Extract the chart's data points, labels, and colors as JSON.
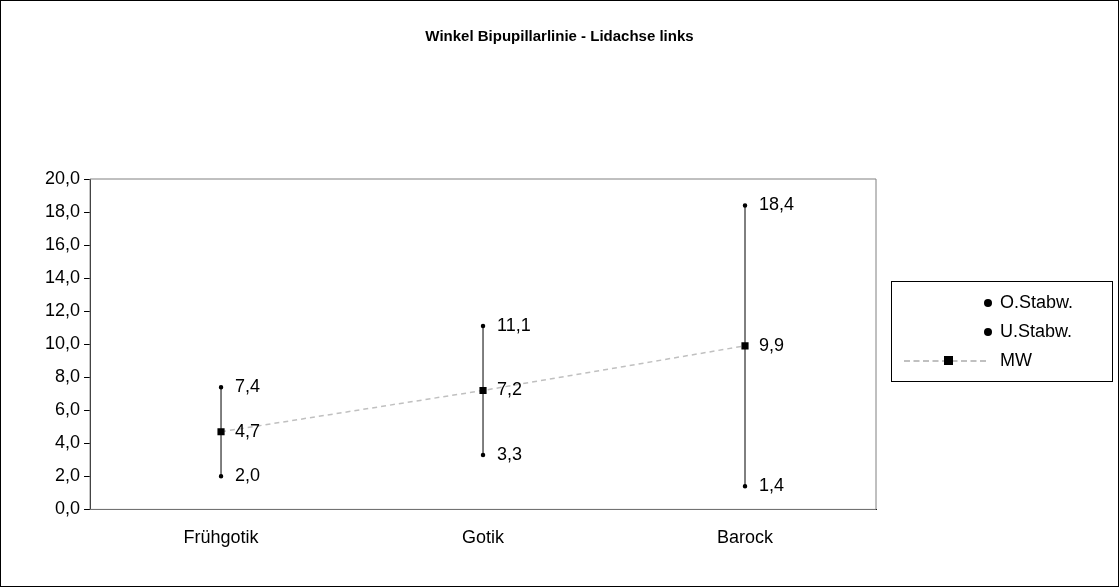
{
  "chart_data": {
    "type": "line",
    "title": "Winkel Bipupillarlinie - Lidachse links",
    "categories": [
      "Frühgotik",
      "Gotik",
      "Barock"
    ],
    "series": [
      {
        "name": "O.Stabw.",
        "type": "scatter",
        "color": "#000000",
        "values": [
          7.4,
          11.1,
          18.4
        ],
        "value_labels": [
          "7,4",
          "11,1",
          "18,4"
        ]
      },
      {
        "name": "U.Stabw.",
        "type": "scatter",
        "color": "#000000",
        "values": [
          2.0,
          3.3,
          1.4
        ],
        "value_labels": [
          "2,0",
          "3,3",
          "1,4"
        ]
      },
      {
        "name": "MW",
        "marker": "square",
        "line_style": "dashed",
        "color": "#c0c0c0",
        "values": [
          4.7,
          7.2,
          9.9
        ],
        "value_labels": [
          "4,7",
          "7,2",
          "9,9"
        ]
      }
    ],
    "ylim": [
      0,
      20
    ],
    "yticks": [
      {
        "value": 0,
        "label": "0,0"
      },
      {
        "value": 2,
        "label": "2,0"
      },
      {
        "value": 4,
        "label": "4,0"
      },
      {
        "value": 6,
        "label": "6,0"
      },
      {
        "value": 8,
        "label": "8,0"
      },
      {
        "value": 10,
        "label": "10,0"
      },
      {
        "value": 12,
        "label": "12,0"
      },
      {
        "value": 14,
        "label": "14,0"
      },
      {
        "value": 16,
        "label": "16,0"
      },
      {
        "value": 18,
        "label": "18,0"
      },
      {
        "value": 20,
        "label": "20,0"
      }
    ],
    "legend": "right"
  }
}
